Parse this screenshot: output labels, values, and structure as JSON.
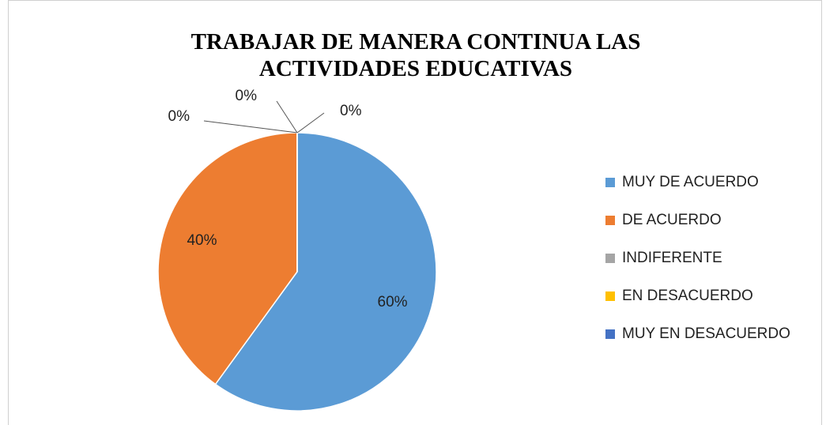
{
  "chart_data": {
    "type": "pie",
    "title": "TRABAJAR DE MANERA CONTINUA LAS ACTIVIDADES EDUCATIVAS",
    "categories": [
      "MUY DE ACUERDO",
      "DE ACUERDO",
      "INDIFERENTE",
      "EN DESACUERDO",
      "MUY EN DESACUERDO"
    ],
    "values": [
      60,
      40,
      0,
      0,
      0
    ],
    "value_labels": [
      "60%",
      "40%",
      "0%",
      "0%",
      "0%"
    ],
    "colors": [
      "#5b9bd5",
      "#ed7d31",
      "#a5a5a5",
      "#ffc000",
      "#4472c4"
    ],
    "legend": "right"
  }
}
